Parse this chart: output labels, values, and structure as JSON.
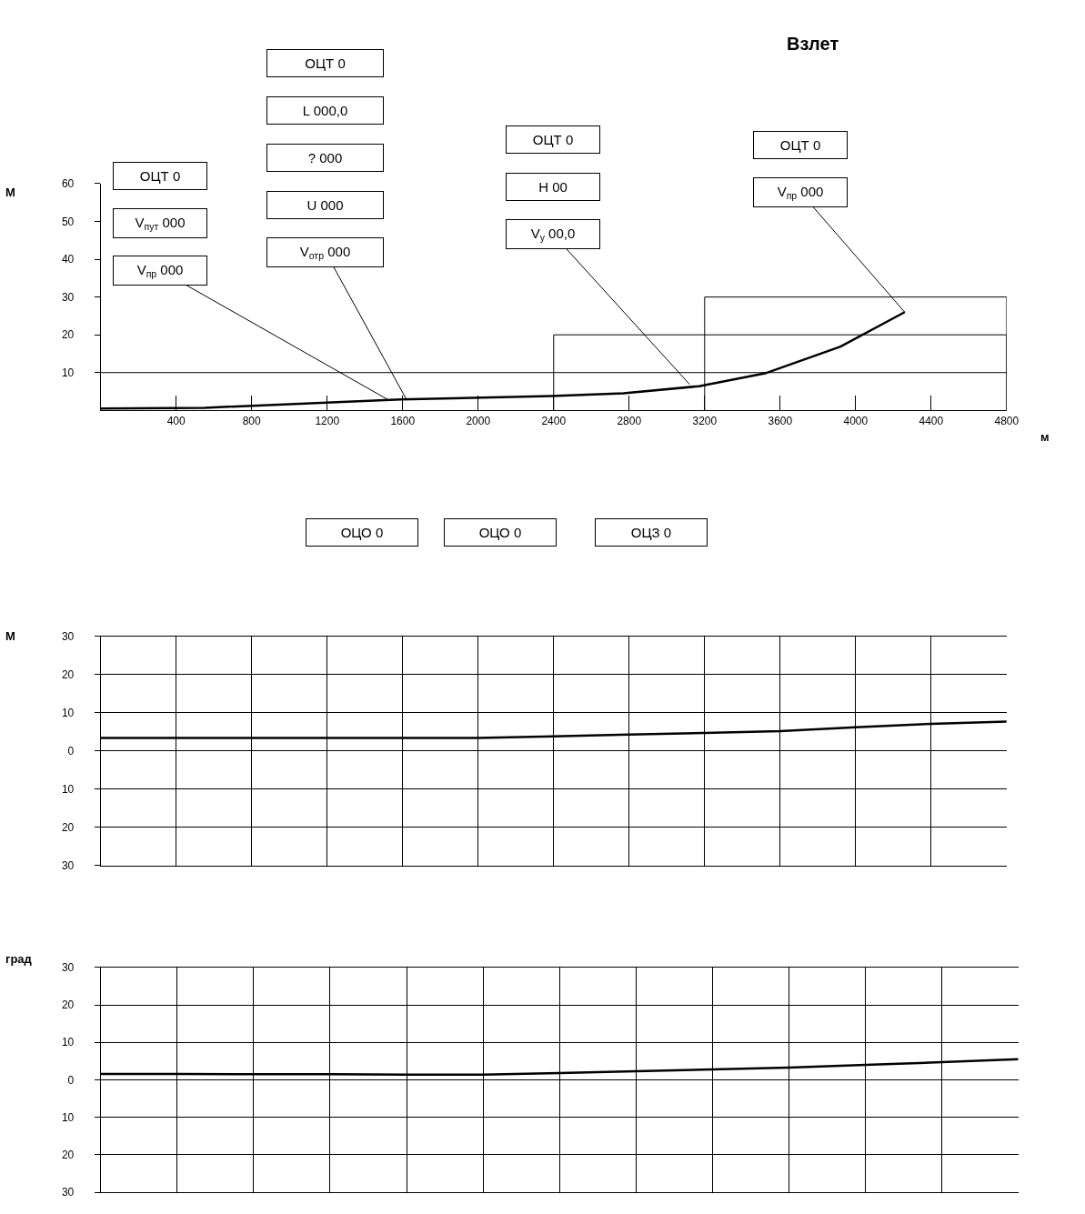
{
  "chart_data": [
    {
      "type": "line",
      "title": "Взлет",
      "xlabel": "м",
      "ylabel": "М",
      "xlim": [
        0,
        4800
      ],
      "xticks": [
        400,
        800,
        1200,
        1600,
        2000,
        2400,
        2800,
        3200,
        3600,
        4000,
        4400,
        4800
      ],
      "ylim": [
        0,
        60
      ],
      "yticks": [
        10,
        20,
        30,
        40,
        50,
        60
      ],
      "grid": false,
      "series": [
        {
          "color": "#000000",
          "x": [
            0,
            550,
            1590,
            2390,
            2770,
            3170,
            3520,
            3920,
            4260
          ],
          "values": [
            0.5,
            0.7,
            2.9,
            3.8,
            4.5,
            6.4,
            9.8,
            16.9,
            26
          ]
        },
        {
          "color": "#000000",
          "x": [
            2400,
            2400,
            4800,
            4800
          ],
          "values": [
            0,
            20,
            20,
            0
          ]
        },
        {
          "color": "#000000",
          "x": [
            3200,
            3200,
            4800,
            4800
          ],
          "values": [
            0,
            30,
            30,
            0
          ]
        }
      ],
      "ref_lines": [
        {
          "axis": "y",
          "value": 10,
          "color": "#000000"
        }
      ],
      "annotations": [
        "ОЦТ 0",
        "V$_{пут}$ 000",
        {
          "text": "V$_{пр}$ 000",
          "x": 1520,
          "y": 2.9
        },
        "ОЦТ 0",
        "L 000,0",
        "? 000",
        "U 000",
        {
          "text": "V$_{отр}$ 000",
          "x": 1620,
          "y": 2.9
        },
        "ОЦТ 0",
        "H 00",
        {
          "text": "V$_{y}$ 00,0",
          "x": 3120,
          "y": 6.9
        },
        "ОЦТ 0",
        {
          "text": "V$_{пр}$ 000",
          "x": 4260,
          "y": 26
        }
      ]
    },
    {
      "type": "line",
      "ylabel": "М",
      "tick_labels": "y",
      "categories": [
        null,
        null,
        null,
        null,
        null,
        null,
        null,
        null,
        null,
        null,
        null,
        null,
        null
      ],
      "ylim": [
        -30,
        30
      ],
      "yticks": [
        {
          "value": -30,
          "label": "30"
        },
        {
          "value": -20,
          "label": "20"
        },
        {
          "value": -10,
          "label": "10"
        },
        0,
        10,
        20,
        30
      ],
      "grid": true,
      "series": [
        {
          "color": "#000000",
          "values": [
            3.4,
            3.4,
            3.4,
            3.4,
            3.4,
            3.4,
            3.8,
            4.3,
            4.7,
            5.2,
            6.2,
            7.1,
            7.7
          ]
        }
      ],
      "annotations": [
        "ОЦО 0",
        "ОЦО 0",
        "ОЦЗ 0"
      ]
    },
    {
      "type": "line",
      "ylabel": "град",
      "tick_labels": "y",
      "categories": [
        null,
        null,
        null,
        null,
        null,
        null,
        null,
        null,
        null,
        null,
        null,
        null,
        null
      ],
      "ylim": [
        -30,
        30
      ],
      "yticks": [
        {
          "value": -30,
          "label": "30"
        },
        {
          "value": -20,
          "label": "20"
        },
        {
          "value": -10,
          "label": "10"
        },
        0,
        10,
        20,
        30
      ],
      "grid": true,
      "series": [
        {
          "color": "#000000",
          "values": [
            1.6,
            1.6,
            1.5,
            1.5,
            1.4,
            1.4,
            1.8,
            2.3,
            2.8,
            3.3,
            4.0,
            4.7,
            5.5
          ]
        }
      ]
    }
  ]
}
